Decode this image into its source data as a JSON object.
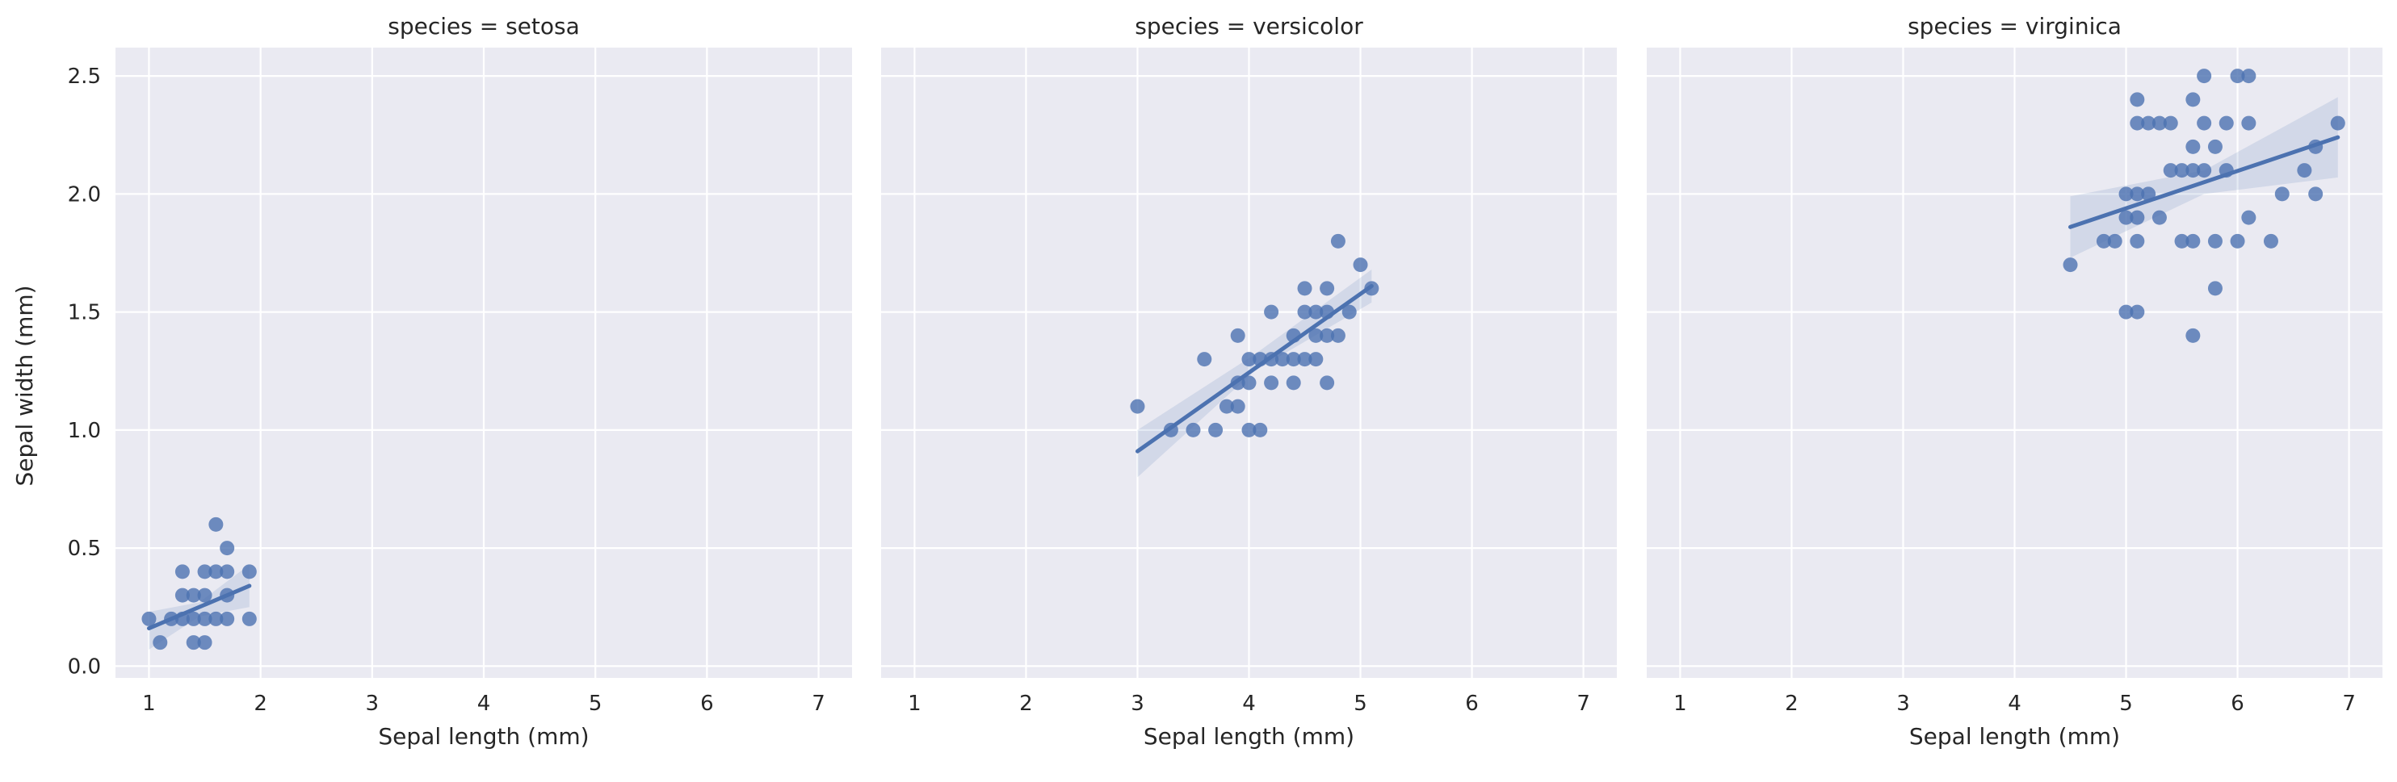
{
  "chart_data": [
    {
      "type": "scatter",
      "title": "species = setosa",
      "xlabel": "Sepal length (mm)",
      "ylabel": "Sepal width (mm)",
      "xlim": [
        0.7,
        7.3
      ],
      "ylim": [
        -0.05,
        2.62
      ],
      "xticks": [
        1,
        2,
        3,
        4,
        5,
        6,
        7
      ],
      "yticks": [
        0.0,
        0.5,
        1.0,
        1.5,
        2.0,
        2.5
      ],
      "grid": true,
      "color": "#4c72b0",
      "points": [
        [
          1.0,
          0.2
        ],
        [
          1.1,
          0.1
        ],
        [
          1.2,
          0.2
        ],
        [
          1.3,
          0.2
        ],
        [
          1.3,
          0.3
        ],
        [
          1.3,
          0.4
        ],
        [
          1.4,
          0.1
        ],
        [
          1.4,
          0.2
        ],
        [
          1.4,
          0.3
        ],
        [
          1.5,
          0.1
        ],
        [
          1.5,
          0.2
        ],
        [
          1.5,
          0.3
        ],
        [
          1.5,
          0.4
        ],
        [
          1.6,
          0.2
        ],
        [
          1.6,
          0.4
        ],
        [
          1.6,
          0.6
        ],
        [
          1.7,
          0.2
        ],
        [
          1.7,
          0.3
        ],
        [
          1.7,
          0.4
        ],
        [
          1.7,
          0.5
        ],
        [
          1.9,
          0.2
        ],
        [
          1.9,
          0.4
        ]
      ],
      "fit": {
        "x": [
          1.0,
          1.9
        ],
        "y": [
          0.16,
          0.34
        ]
      },
      "ci": {
        "x": [
          1.0,
          1.45,
          1.9
        ],
        "lower": [
          0.07,
          0.21,
          0.25
        ],
        "upper": [
          0.23,
          0.27,
          0.43
        ]
      }
    },
    {
      "type": "scatter",
      "title": "species = versicolor",
      "xlabel": "Sepal length (mm)",
      "ylabel": "",
      "xlim": [
        0.7,
        7.3
      ],
      "ylim": [
        -0.05,
        2.62
      ],
      "xticks": [
        1,
        2,
        3,
        4,
        5,
        6,
        7
      ],
      "yticks": [
        0.0,
        0.5,
        1.0,
        1.5,
        2.0,
        2.5
      ],
      "grid": true,
      "color": "#4c72b0",
      "points": [
        [
          3.0,
          1.1
        ],
        [
          3.3,
          1.0
        ],
        [
          3.5,
          1.0
        ],
        [
          3.6,
          1.3
        ],
        [
          3.7,
          1.0
        ],
        [
          3.8,
          1.1
        ],
        [
          3.9,
          1.1
        ],
        [
          3.9,
          1.2
        ],
        [
          3.9,
          1.4
        ],
        [
          4.0,
          1.0
        ],
        [
          4.0,
          1.2
        ],
        [
          4.0,
          1.3
        ],
        [
          4.1,
          1.0
        ],
        [
          4.1,
          1.3
        ],
        [
          4.2,
          1.2
        ],
        [
          4.2,
          1.3
        ],
        [
          4.2,
          1.5
        ],
        [
          4.3,
          1.3
        ],
        [
          4.4,
          1.2
        ],
        [
          4.4,
          1.3
        ],
        [
          4.4,
          1.4
        ],
        [
          4.5,
          1.3
        ],
        [
          4.5,
          1.5
        ],
        [
          4.5,
          1.6
        ],
        [
          4.6,
          1.3
        ],
        [
          4.6,
          1.4
        ],
        [
          4.6,
          1.5
        ],
        [
          4.7,
          1.2
        ],
        [
          4.7,
          1.4
        ],
        [
          4.7,
          1.5
        ],
        [
          4.7,
          1.6
        ],
        [
          4.8,
          1.4
        ],
        [
          4.8,
          1.8
        ],
        [
          4.9,
          1.5
        ],
        [
          5.0,
          1.7
        ],
        [
          5.1,
          1.6
        ]
      ],
      "fit": {
        "x": [
          3.0,
          5.1
        ],
        "y": [
          0.91,
          1.61
        ]
      },
      "ci": {
        "x": [
          3.0,
          4.05,
          5.1
        ],
        "lower": [
          0.8,
          1.25,
          1.54
        ],
        "upper": [
          1.0,
          1.32,
          1.68
        ]
      }
    },
    {
      "type": "scatter",
      "title": "species = virginica",
      "xlabel": "Sepal length (mm)",
      "ylabel": "",
      "xlim": [
        0.7,
        7.3
      ],
      "ylim": [
        -0.05,
        2.62
      ],
      "xticks": [
        1,
        2,
        3,
        4,
        5,
        6,
        7
      ],
      "yticks": [
        0.0,
        0.5,
        1.0,
        1.5,
        2.0,
        2.5
      ],
      "grid": true,
      "color": "#4c72b0",
      "points": [
        [
          4.5,
          1.7
        ],
        [
          4.8,
          1.8
        ],
        [
          4.9,
          1.8
        ],
        [
          5.0,
          1.5
        ],
        [
          5.0,
          1.9
        ],
        [
          5.0,
          2.0
        ],
        [
          5.1,
          1.5
        ],
        [
          5.1,
          1.8
        ],
        [
          5.1,
          1.9
        ],
        [
          5.1,
          2.0
        ],
        [
          5.1,
          2.3
        ],
        [
          5.1,
          2.4
        ],
        [
          5.2,
          2.0
        ],
        [
          5.2,
          2.3
        ],
        [
          5.3,
          1.9
        ],
        [
          5.3,
          2.3
        ],
        [
          5.4,
          2.1
        ],
        [
          5.4,
          2.3
        ],
        [
          5.5,
          1.8
        ],
        [
          5.5,
          2.1
        ],
        [
          5.6,
          1.4
        ],
        [
          5.6,
          1.8
        ],
        [
          5.6,
          2.1
        ],
        [
          5.6,
          2.2
        ],
        [
          5.6,
          2.4
        ],
        [
          5.7,
          2.1
        ],
        [
          5.7,
          2.3
        ],
        [
          5.7,
          2.5
        ],
        [
          5.8,
          1.6
        ],
        [
          5.8,
          1.8
        ],
        [
          5.8,
          2.2
        ],
        [
          5.9,
          2.1
        ],
        [
          5.9,
          2.3
        ],
        [
          6.0,
          1.8
        ],
        [
          6.0,
          2.5
        ],
        [
          6.1,
          1.9
        ],
        [
          6.1,
          2.3
        ],
        [
          6.1,
          2.5
        ],
        [
          6.3,
          1.8
        ],
        [
          6.4,
          2.0
        ],
        [
          6.6,
          2.1
        ],
        [
          6.7,
          2.0
        ],
        [
          6.7,
          2.2
        ],
        [
          6.9,
          2.3
        ]
      ],
      "fit": {
        "x": [
          4.5,
          6.9
        ],
        "y": [
          1.86,
          2.24
        ]
      },
      "ci": {
        "x": [
          4.5,
          5.7,
          6.9
        ],
        "lower": [
          1.73,
          2.0,
          2.07
        ],
        "upper": [
          1.99,
          2.1,
          2.41
        ]
      }
    }
  ]
}
